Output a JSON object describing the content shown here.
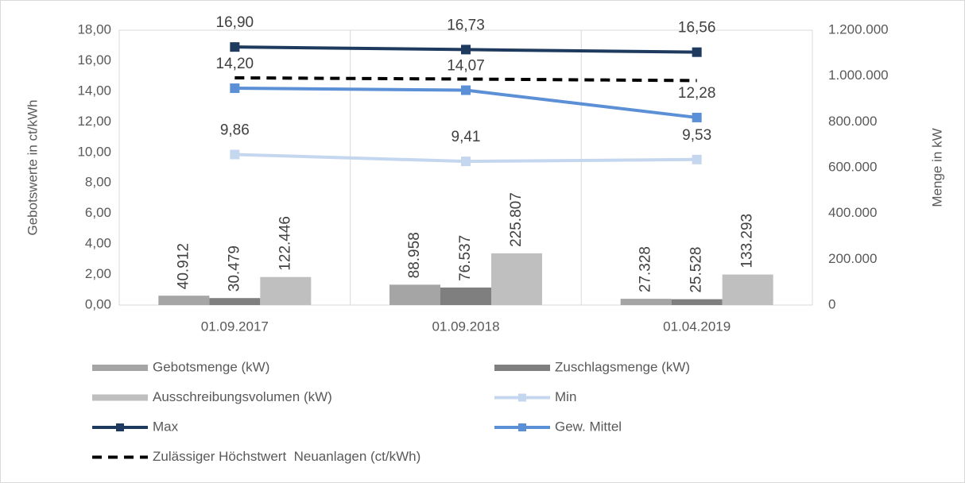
{
  "chart_data": {
    "type": "combo",
    "categories": [
      "01.09.2017",
      "01.09.2018",
      "01.04.2019"
    ],
    "ylabel": "Gebotswerte in ct/kWh",
    "y2label": "Menge in kW",
    "ylim": [
      0,
      18
    ],
    "yticks": [
      {
        "value": 0,
        "label": "0,00"
      },
      {
        "value": 2,
        "label": "2,00"
      },
      {
        "value": 4,
        "label": "4,00"
      },
      {
        "value": 6,
        "label": "6,00"
      },
      {
        "value": 8,
        "label": "8,00"
      },
      {
        "value": 10,
        "label": "10,00"
      },
      {
        "value": 12,
        "label": "12,00"
      },
      {
        "value": 14,
        "label": "14,00"
      },
      {
        "value": 16,
        "label": "16,00"
      },
      {
        "value": 18,
        "label": "18,00"
      }
    ],
    "y2lim": [
      0,
      1200000
    ],
    "y2ticks": [
      0,
      {
        "value": 200000,
        "label": "200.000"
      },
      {
        "value": 400000,
        "label": "400.000"
      },
      {
        "value": 600000,
        "label": "600.000"
      },
      {
        "value": 800000,
        "label": "800.000"
      },
      {
        "value": 1000000,
        "label": "1.000.000"
      },
      {
        "value": 1200000,
        "label": "1.200.000"
      }
    ],
    "grid": false,
    "legend": "bottom",
    "series": [
      {
        "name": "Gebotsmenge (kW)",
        "type": "bar",
        "axis": "y2",
        "color": "#a5a5a5",
        "values": [
          40912,
          88958,
          27328
        ],
        "value_labels": [
          "40.912",
          "88.958",
          "27.328"
        ]
      },
      {
        "name": "Zuschlagsmenge (kW)",
        "type": "bar",
        "axis": "y2",
        "color": "#7f7f7f",
        "values": [
          30479,
          76537,
          25528
        ],
        "value_labels": [
          "30.479",
          "76.537",
          "25.528"
        ]
      },
      {
        "name": "Ausschreibungsvolumen (kW)",
        "type": "bar",
        "axis": "y2",
        "color": "#bfbfbf",
        "values": [
          122446,
          225807,
          133293
        ],
        "value_labels": [
          "122.446",
          "225.807",
          "133.293"
        ]
      },
      {
        "name": "Min",
        "type": "line",
        "color": "#c5d7ee",
        "marker": "square",
        "values": [
          9.86,
          9.41,
          9.53
        ],
        "value_labels": [
          "9,86",
          "9,41",
          "9,53"
        ]
      },
      {
        "name": "Max",
        "type": "line",
        "color": "#1f3a5f",
        "marker": "square",
        "values": [
          16.9,
          16.73,
          16.56
        ],
        "value_labels": [
          "16,90",
          "16,73",
          "16,56"
        ]
      },
      {
        "name": "Gew. Mittel",
        "type": "line",
        "color": "#5b8fd6",
        "marker": "square",
        "values": [
          14.2,
          14.07,
          12.28
        ],
        "value_labels": [
          "14,20",
          "14,07",
          "12,28"
        ]
      },
      {
        "name": "Zulässiger Höchstwert  Neuanlagen (ct/kWh)",
        "type": "line",
        "color": "#000000",
        "linestyle": "dashed",
        "values": [
          14.88,
          14.8,
          14.7
        ]
      }
    ]
  }
}
